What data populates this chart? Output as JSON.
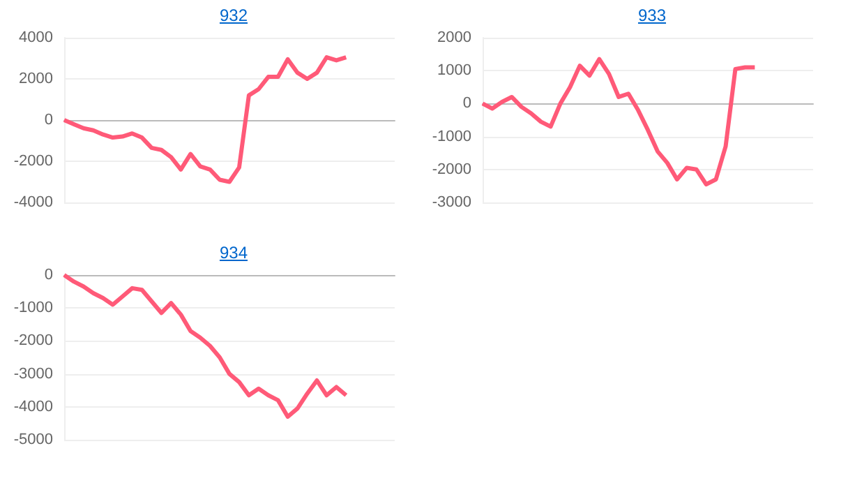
{
  "chart_data": [
    {
      "type": "line",
      "title": "932",
      "categories": [
        null,
        null,
        null,
        null,
        null,
        null,
        null,
        null,
        null,
        null,
        null,
        null,
        null,
        null,
        null,
        null,
        null,
        null,
        null,
        null,
        null,
        null,
        null,
        null,
        null,
        null,
        null,
        null,
        null,
        null,
        null,
        null,
        null,
        null,
        null
      ],
      "series": [
        {
          "color": "#ff5a78",
          "values": [
            0,
            -200,
            -400,
            -500,
            -700,
            -850,
            -800,
            -650,
            -850,
            -1350,
            -1450,
            -1800,
            -2400,
            -1650,
            -2250,
            -2400,
            -2900,
            -3000,
            -2300,
            1200,
            1500,
            2100,
            2100,
            2950,
            2300,
            2000,
            2300,
            3050,
            2900,
            3050,
            null,
            null,
            null,
            null,
            null
          ]
        }
      ],
      "ylim": [
        -4000,
        4000
      ],
      "yticks": [
        -4000,
        -2000,
        0,
        2000,
        4000
      ],
      "grid": "y",
      "tick_labels": "y"
    },
    {
      "type": "line",
      "title": "933",
      "categories": [
        null,
        null,
        null,
        null,
        null,
        null,
        null,
        null,
        null,
        null,
        null,
        null,
        null,
        null,
        null,
        null,
        null,
        null,
        null,
        null,
        null,
        null,
        null,
        null,
        null,
        null,
        null,
        null,
        null,
        null,
        null,
        null,
        null,
        null,
        null
      ],
      "series": [
        {
          "color": "#ff5a78",
          "values": [
            0,
            -150,
            50,
            200,
            -100,
            -300,
            -550,
            -700,
            0,
            500,
            1150,
            850,
            1350,
            900,
            200,
            300,
            -200,
            -800,
            -1450,
            -1800,
            -2300,
            -1950,
            -2000,
            -2450,
            -2300,
            -1300,
            1050,
            1100,
            1100,
            null,
            null,
            null,
            null,
            null,
            null
          ]
        }
      ],
      "ylim": [
        -3000,
        2000
      ],
      "yticks": [
        -3000,
        -2000,
        -1000,
        0,
        1000,
        2000
      ],
      "grid": "y",
      "tick_labels": "y"
    },
    {
      "type": "line",
      "title": "934",
      "categories": [
        null,
        null,
        null,
        null,
        null,
        null,
        null,
        null,
        null,
        null,
        null,
        null,
        null,
        null,
        null,
        null,
        null,
        null,
        null,
        null,
        null,
        null,
        null,
        null,
        null,
        null,
        null,
        null,
        null,
        null,
        null,
        null,
        null,
        null,
        null
      ],
      "series": [
        {
          "color": "#ff5a78",
          "values": [
            0,
            -200,
            -350,
            -550,
            -700,
            -900,
            -650,
            -400,
            -450,
            -800,
            -1150,
            -850,
            -1200,
            -1700,
            -1900,
            -2150,
            -2500,
            -3000,
            -3250,
            -3650,
            -3450,
            -3650,
            -3800,
            -4300,
            -4050,
            -3600,
            -3200,
            -3650,
            -3400,
            -3650,
            null,
            null,
            null,
            null,
            null
          ]
        }
      ],
      "ylim": [
        -5000,
        0
      ],
      "yticks": [
        -5000,
        -4000,
        -3000,
        -2000,
        -1000,
        0
      ],
      "grid": "y",
      "tick_labels": "y"
    }
  ]
}
